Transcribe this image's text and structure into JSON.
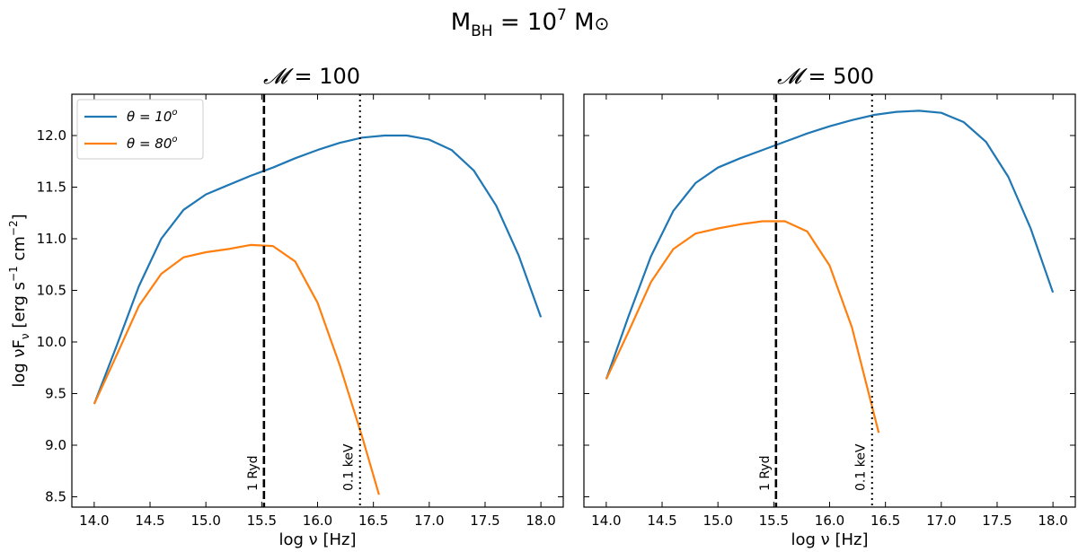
{
  "suptitle": {
    "main": "M",
    "sub": "BH",
    "mid": " = 10",
    "sup": "7",
    "unit": " M",
    "sun": "⊙"
  },
  "ylabel": {
    "pre": "log νF",
    "sub": "ν",
    "mid": " [erg s",
    "sup1": "−1",
    "mid2": " cm",
    "sup2": "−2",
    "end": "]"
  },
  "colors": {
    "theta10": "#1f77b4",
    "theta80": "#ff7f0e"
  },
  "chart_data": [
    {
      "type": "line",
      "title_symbol": "𝓜",
      "title_value": " = 100",
      "xlabel": "log ν [Hz]",
      "xlim": [
        13.8,
        18.2
      ],
      "ylim": [
        8.4,
        12.4
      ],
      "xticks": [
        14.0,
        14.5,
        15.0,
        15.5,
        16.0,
        16.5,
        17.0,
        17.5,
        18.0
      ],
      "yticks": [
        8.5,
        9.0,
        9.5,
        10.0,
        10.5,
        11.0,
        11.5,
        12.0
      ],
      "legend": [
        {
          "label": "θ = 10",
          "sup": "o",
          "color": "#1f77b4"
        },
        {
          "label": "θ = 80",
          "sup": "o",
          "color": "#ff7f0e"
        }
      ],
      "series": [
        {
          "name": "θ = 10°",
          "color": "#1f77b4",
          "x": [
            14.0,
            14.2,
            14.4,
            14.6,
            14.8,
            15.0,
            15.2,
            15.4,
            15.6,
            15.8,
            16.0,
            16.2,
            16.4,
            16.6,
            16.8,
            17.0,
            17.2,
            17.4,
            17.6,
            17.8,
            18.0
          ],
          "y": [
            9.4,
            9.96,
            10.54,
            11.0,
            11.28,
            11.43,
            11.52,
            11.61,
            11.69,
            11.78,
            11.86,
            11.93,
            11.98,
            12.0,
            12.0,
            11.96,
            11.86,
            11.66,
            11.32,
            10.84,
            10.24
          ]
        },
        {
          "name": "θ = 80°",
          "color": "#ff7f0e",
          "x": [
            14.0,
            14.2,
            14.4,
            14.6,
            14.8,
            15.0,
            15.2,
            15.4,
            15.6,
            15.8,
            16.0,
            16.2,
            16.4,
            16.55
          ],
          "y": [
            9.4,
            9.87,
            10.35,
            10.66,
            10.82,
            10.87,
            10.9,
            10.94,
            10.93,
            10.78,
            10.38,
            9.77,
            9.08,
            8.52
          ]
        }
      ],
      "vlines": [
        {
          "x": 15.52,
          "style": "dashed",
          "label": "1 Ryd"
        },
        {
          "x": 16.38,
          "style": "dotted",
          "label": "0.1 keV"
        }
      ]
    },
    {
      "type": "line",
      "title_symbol": "𝓜",
      "title_value": " = 500",
      "xlabel": "log ν [Hz]",
      "xlim": [
        13.8,
        18.2
      ],
      "ylim": [
        8.4,
        12.4
      ],
      "xticks": [
        14.0,
        14.5,
        15.0,
        15.5,
        16.0,
        16.5,
        17.0,
        17.5,
        18.0
      ],
      "series": [
        {
          "name": "θ = 10°",
          "color": "#1f77b4",
          "x": [
            14.0,
            14.2,
            14.4,
            14.6,
            14.8,
            15.0,
            15.2,
            15.4,
            15.6,
            15.8,
            16.0,
            16.2,
            16.4,
            16.6,
            16.8,
            17.0,
            17.2,
            17.4,
            17.6,
            17.8,
            18.0
          ],
          "y": [
            9.64,
            10.25,
            10.83,
            11.27,
            11.54,
            11.69,
            11.78,
            11.86,
            11.94,
            12.02,
            12.09,
            12.15,
            12.2,
            12.23,
            12.24,
            12.22,
            12.13,
            11.94,
            11.6,
            11.1,
            10.48
          ]
        },
        {
          "name": "θ = 80°",
          "color": "#ff7f0e",
          "x": [
            14.0,
            14.2,
            14.4,
            14.6,
            14.8,
            15.0,
            15.2,
            15.4,
            15.6,
            15.8,
            16.0,
            16.2,
            16.44
          ],
          "y": [
            9.64,
            10.1,
            10.58,
            10.9,
            11.05,
            11.1,
            11.14,
            11.17,
            11.17,
            11.07,
            10.74,
            10.14,
            9.12
          ]
        }
      ],
      "vlines": [
        {
          "x": 15.52,
          "style": "dashed",
          "label": "1 Ryd"
        },
        {
          "x": 16.38,
          "style": "dotted",
          "label": "0.1 keV"
        }
      ]
    }
  ]
}
